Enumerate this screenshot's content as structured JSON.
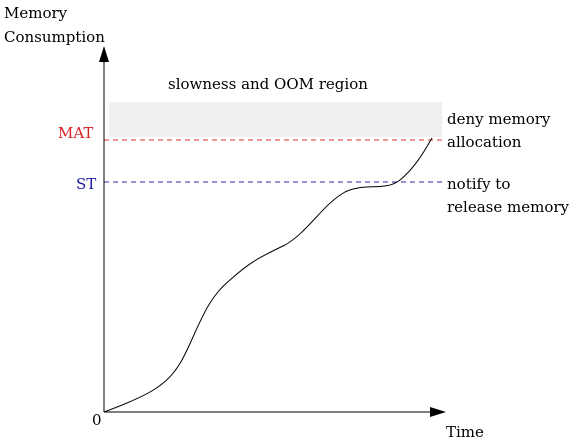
{
  "chart_data": {
    "type": "line",
    "ylabel": [
      "Memory",
      "Consumption"
    ],
    "xlabel": "Time",
    "origin_label": "0",
    "region": {
      "label": "slowness and OOM region",
      "color": "#efefef"
    },
    "thresholds": [
      {
        "name": "MAT",
        "color": "#e03030",
        "label_color": "#d62020",
        "annotation": [
          "deny memory",
          "allocation"
        ]
      },
      {
        "name": "ST",
        "color": "#2a2aa0",
        "label_color": "#1a1aa0",
        "annotation": [
          "notify to",
          "release memory"
        ]
      }
    ],
    "grid": false,
    "legend": "none"
  }
}
